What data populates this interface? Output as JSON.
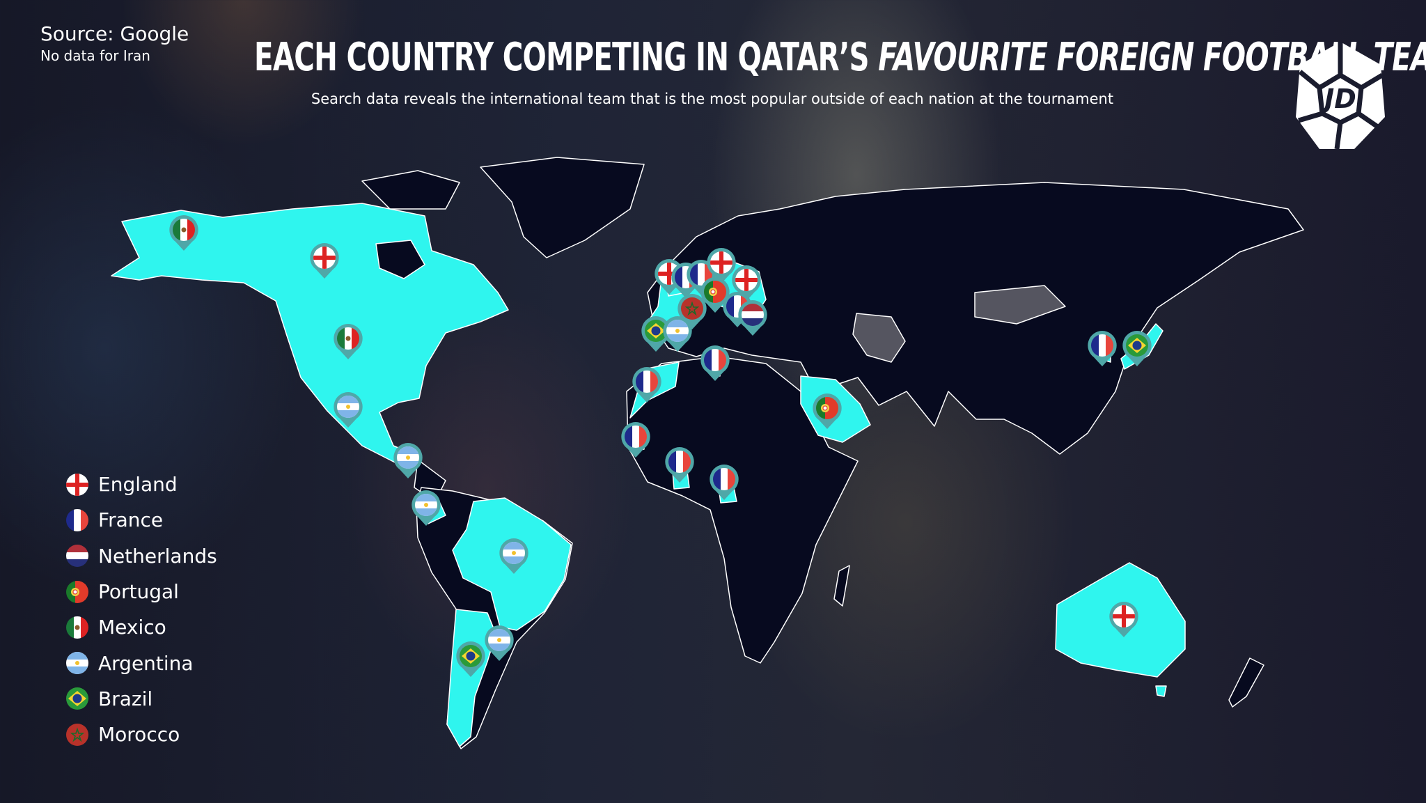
{
  "header": {
    "source": "Source: Google",
    "note": "No data for Iran",
    "title_main": "EACH COUNTRY COMPETING IN QATAR’S",
    "title_italic": "FAVOURITE FOREIGN FOOTBALL TEAM",
    "subtitle": "Search data reveals the international team that is the most popular outside of each nation at the tournament"
  },
  "logo": {
    "text": "JD"
  },
  "colors": {
    "highlight": "#2ff5ee",
    "land": "#070a1f",
    "no_data": "#555560",
    "pin": "#4fa7a8",
    "border": "#ffffff"
  },
  "legend": [
    {
      "team": "England",
      "flag": "england"
    },
    {
      "team": "France",
      "flag": "france"
    },
    {
      "team": "Netherlands",
      "flag": "netherlands"
    },
    {
      "team": "Portugal",
      "flag": "portugal"
    },
    {
      "team": "Mexico",
      "flag": "mexico"
    },
    {
      "team": "Argentina",
      "flag": "argentina"
    },
    {
      "team": "Brazil",
      "flag": "brazil"
    },
    {
      "team": "Morocco",
      "flag": "morocco"
    }
  ],
  "markers": [
    {
      "favourite": "mexico"
    },
    {
      "favourite": "england"
    },
    {
      "favourite": "mexico"
    },
    {
      "favourite": "argentina"
    },
    {
      "favourite": "argentina"
    },
    {
      "favourite": "argentina"
    },
    {
      "favourite": "argentina"
    },
    {
      "favourite": "brazil"
    },
    {
      "favourite": "argentina"
    },
    {
      "favourite": "england"
    },
    {
      "favourite": "france"
    },
    {
      "favourite": "france"
    },
    {
      "favourite": "england"
    },
    {
      "favourite": "portugal"
    },
    {
      "favourite": "england"
    },
    {
      "favourite": "morocco"
    },
    {
      "favourite": "france"
    },
    {
      "favourite": "netherlands"
    },
    {
      "favourite": "brazil"
    },
    {
      "favourite": "argentina"
    },
    {
      "favourite": "france"
    },
    {
      "favourite": "france"
    },
    {
      "favourite": "france"
    },
    {
      "favourite": "france"
    },
    {
      "favourite": "france"
    },
    {
      "favourite": "portugal"
    },
    {
      "favourite": "france"
    },
    {
      "favourite": "brazil"
    },
    {
      "favourite": "england"
    }
  ]
}
